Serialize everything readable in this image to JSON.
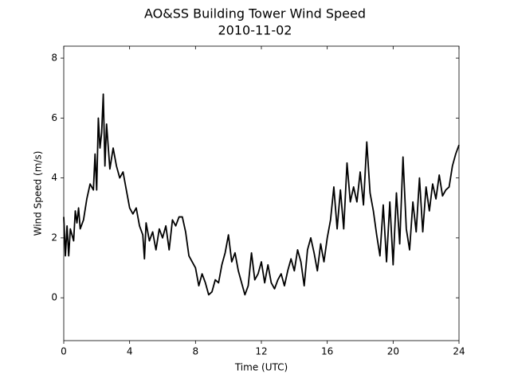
{
  "chart_data": {
    "type": "line",
    "title": "AO&SS Building Tower Wind Speed",
    "subtitle": "2010-11-02",
    "x_label": "Time (UTC)",
    "y_label": "Wind Speed (m/s)",
    "color": "#000000",
    "xlim": [
      0,
      24
    ],
    "xticks": [
      0,
      4,
      8,
      12,
      16,
      20,
      24
    ],
    "ylim": [
      -1.43,
      8.4
    ],
    "yticks": [
      0,
      2,
      4,
      6,
      8
    ],
    "grid": false,
    "x": [
      0,
      0.1,
      0.2,
      0.3,
      0.4,
      0.6,
      0.7,
      0.8,
      0.9,
      1.0,
      1.2,
      1.4,
      1.6,
      1.8,
      1.9,
      2.0,
      2.1,
      2.2,
      2.3,
      2.4,
      2.5,
      2.6,
      2.8,
      3.0,
      3.2,
      3.4,
      3.6,
      3.8,
      4.0,
      4.2,
      4.4,
      4.6,
      4.8,
      4.9,
      5.0,
      5.2,
      5.4,
      5.6,
      5.8,
      6.0,
      6.2,
      6.4,
      6.6,
      6.8,
      7.0,
      7.2,
      7.4,
      7.6,
      7.8,
      8.0,
      8.2,
      8.4,
      8.6,
      8.8,
      9.0,
      9.2,
      9.4,
      9.6,
      9.8,
      10.0,
      10.2,
      10.4,
      10.6,
      10.8,
      11.0,
      11.2,
      11.4,
      11.6,
      11.8,
      12.0,
      12.2,
      12.4,
      12.6,
      12.8,
      13.0,
      13.2,
      13.4,
      13.6,
      13.8,
      14.0,
      14.2,
      14.4,
      14.6,
      14.8,
      15.0,
      15.2,
      15.4,
      15.6,
      15.8,
      16.0,
      16.2,
      16.4,
      16.6,
      16.8,
      17.0,
      17.2,
      17.4,
      17.6,
      17.8,
      18.0,
      18.2,
      18.4,
      18.6,
      18.8,
      19.0,
      19.2,
      19.4,
      19.6,
      19.8,
      20.0,
      20.2,
      20.4,
      20.6,
      20.8,
      21.0,
      21.2,
      21.4,
      21.6,
      21.8,
      22.0,
      22.2,
      22.4,
      22.6,
      22.8,
      23.0,
      23.2,
      23.4,
      23.6,
      23.8,
      24.0
    ],
    "values": [
      2.7,
      1.4,
      2.4,
      1.4,
      2.3,
      1.9,
      2.9,
      2.5,
      3.0,
      2.3,
      2.6,
      3.3,
      3.8,
      3.6,
      4.8,
      3.6,
      6.0,
      5.0,
      5.5,
      6.8,
      4.4,
      5.8,
      4.3,
      5.0,
      4.4,
      4.0,
      4.2,
      3.6,
      3.0,
      2.8,
      3.0,
      2.4,
      2.1,
      1.3,
      2.5,
      1.9,
      2.2,
      1.6,
      2.3,
      2.0,
      2.4,
      1.6,
      2.6,
      2.4,
      2.7,
      2.7,
      2.2,
      1.4,
      1.2,
      1.0,
      0.4,
      0.8,
      0.5,
      0.1,
      0.2,
      0.6,
      0.5,
      1.1,
      1.5,
      2.1,
      1.2,
      1.5,
      0.9,
      0.5,
      0.1,
      0.4,
      1.5,
      0.6,
      0.8,
      1.2,
      0.5,
      1.1,
      0.5,
      0.3,
      0.6,
      0.8,
      0.4,
      0.9,
      1.3,
      0.9,
      1.6,
      1.2,
      0.4,
      1.6,
      2.0,
      1.5,
      0.9,
      1.8,
      1.2,
      2.0,
      2.6,
      3.7,
      2.3,
      3.6,
      2.3,
      4.5,
      3.2,
      3.7,
      3.2,
      4.2,
      3.1,
      5.2,
      3.5,
      2.9,
      2.1,
      1.4,
      3.1,
      1.2,
      3.2,
      1.1,
      3.5,
      1.8,
      4.7,
      2.3,
      1.6,
      3.2,
      2.2,
      4.0,
      2.2,
      3.7,
      2.9,
      3.8,
      3.3,
      4.1,
      3.4,
      3.6,
      3.7,
      4.4,
      4.8,
      5.1
    ]
  }
}
